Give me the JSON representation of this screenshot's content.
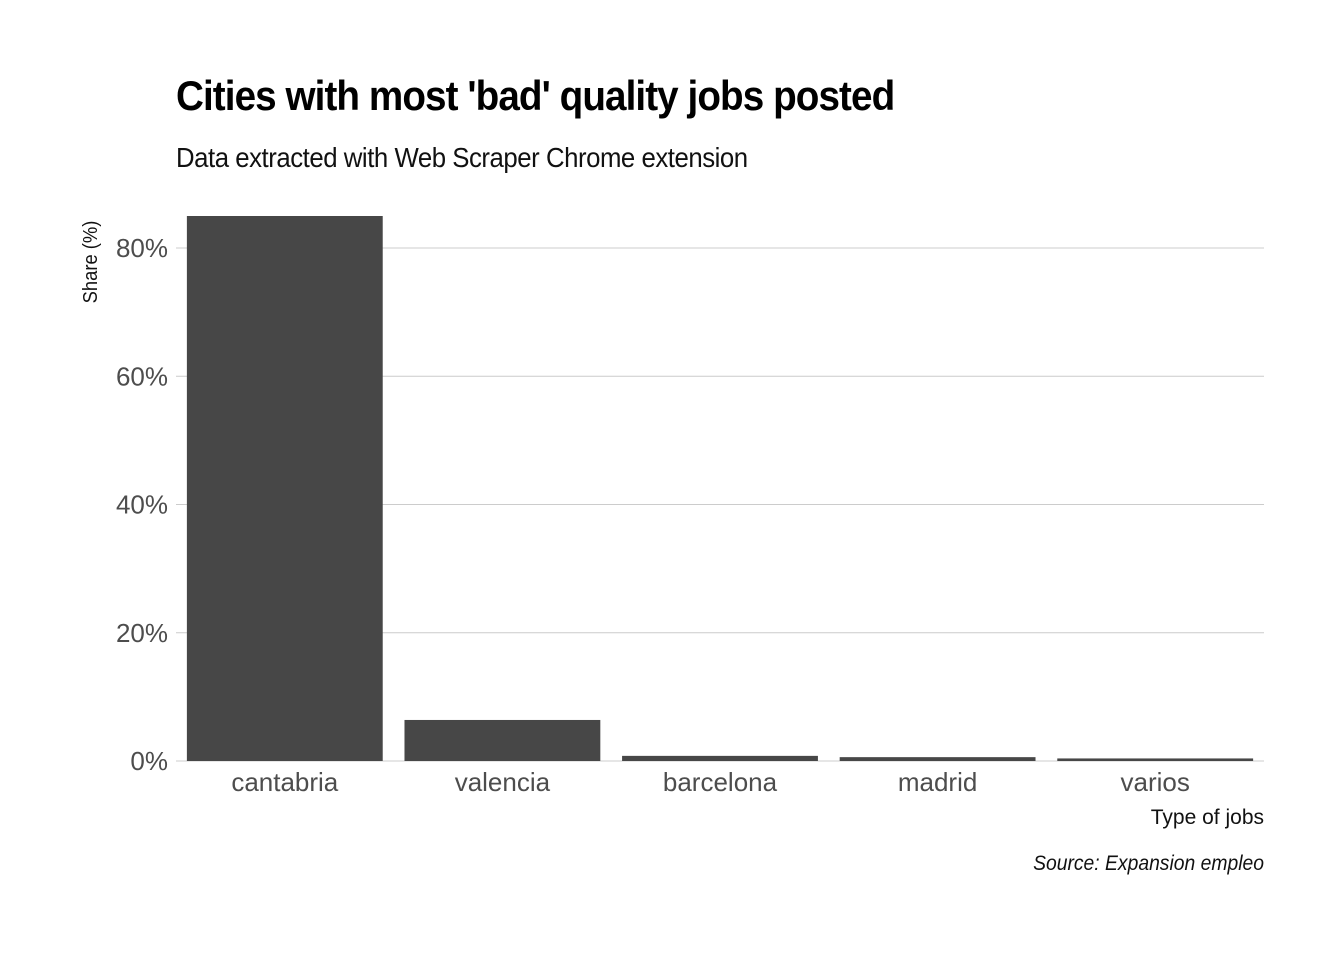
{
  "title": "Cities with most 'bad' quality jobs posted",
  "subtitle": "Data extracted with Web Scraper Chrome extension",
  "caption": "Source: Expansion empleo",
  "colors": {
    "bar": "#474747",
    "grid": "#cccccc",
    "tick_text": "#4d4d4d",
    "axis_title": "#111111"
  },
  "chart_data": {
    "type": "bar",
    "categories": [
      "cantabria",
      "valencia",
      "barcelona",
      "madrid",
      "varios"
    ],
    "values": [
      85,
      6.4,
      0.8,
      0.6,
      0.4
    ],
    "xlabel": "Type of jobs",
    "ylabel": "Share (%)",
    "ylim": [
      0,
      85
    ],
    "yticks": [
      0,
      20,
      40,
      60,
      80
    ],
    "ytick_labels": [
      "0%",
      "20%",
      "40%",
      "60%",
      "80%"
    ],
    "grid": "horizontal",
    "legend": "none"
  }
}
